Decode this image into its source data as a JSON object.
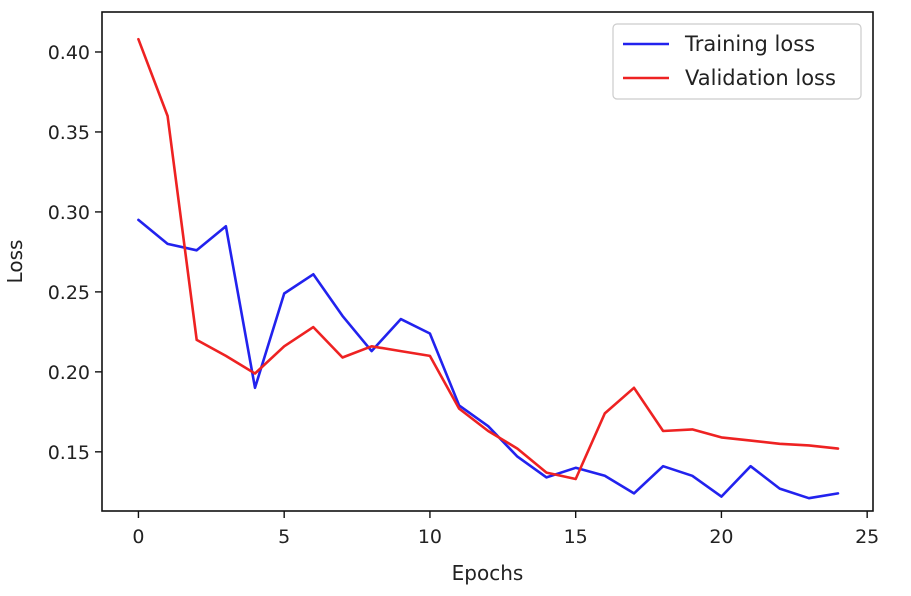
{
  "chart_data": {
    "type": "line",
    "title": "",
    "xlabel": "Epochs",
    "ylabel": "Loss",
    "xlim": [
      -1.25,
      25.2
    ],
    "ylim": [
      0.113,
      0.425
    ],
    "xticks": [
      0,
      5,
      10,
      15,
      20,
      25
    ],
    "xtick_labels": [
      "0",
      "5",
      "10",
      "15",
      "20",
      "25"
    ],
    "yticks": [
      0.15,
      0.2,
      0.25,
      0.3,
      0.35,
      0.4
    ],
    "ytick_labels": [
      "0.15",
      "0.20",
      "0.25",
      "0.30",
      "0.35",
      "0.40"
    ],
    "grid": false,
    "legend_position": "top-right",
    "x": [
      0,
      1,
      2,
      3,
      4,
      5,
      6,
      7,
      8,
      9,
      10,
      11,
      12,
      13,
      14,
      15,
      16,
      17,
      18,
      19,
      20,
      21,
      22,
      23,
      24
    ],
    "series": [
      {
        "name": "Training loss",
        "color": "#2222ee",
        "values": [
          0.295,
          0.28,
          0.276,
          0.291,
          0.19,
          0.249,
          0.261,
          0.235,
          0.213,
          0.233,
          0.224,
          0.179,
          0.166,
          0.147,
          0.134,
          0.14,
          0.135,
          0.124,
          0.141,
          0.135,
          0.122,
          0.141,
          0.127,
          0.121,
          0.124
        ]
      },
      {
        "name": "Validation loss",
        "color": "#ee2222",
        "values": [
          0.408,
          0.36,
          0.22,
          0.21,
          0.199,
          0.216,
          0.228,
          0.209,
          0.216,
          0.213,
          0.21,
          0.177,
          0.163,
          0.152,
          0.137,
          0.133,
          0.174,
          0.19,
          0.163,
          0.164,
          0.159,
          0.157,
          0.155,
          0.154,
          0.152
        ]
      }
    ]
  }
}
